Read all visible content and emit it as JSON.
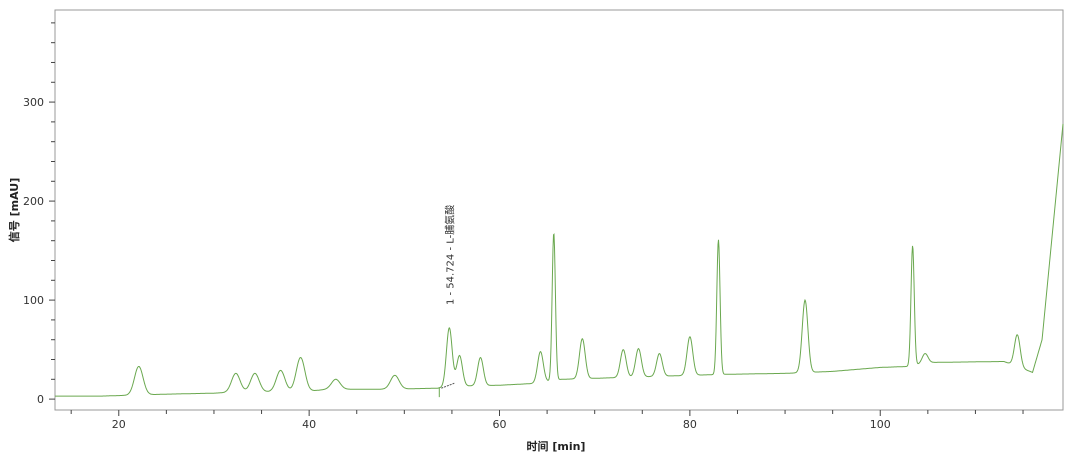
{
  "chart_data": {
    "type": "line",
    "title": "",
    "xlabel": "时间 [min]",
    "ylabel": "信号 [mAU]",
    "xlim": [
      13.3,
      119.2
    ],
    "ylim": [
      -11,
      393
    ],
    "xticks": [
      20,
      40,
      60,
      80,
      100
    ],
    "yticks": [
      0,
      100,
      200,
      300
    ],
    "grid": false,
    "line_color": "#6aa84f",
    "baseline": [
      [
        13.3,
        3
      ],
      [
        18,
        3
      ],
      [
        25,
        5
      ],
      [
        30,
        6
      ],
      [
        32,
        7
      ],
      [
        40,
        8
      ],
      [
        42,
        10
      ],
      [
        48,
        10
      ],
      [
        53.5,
        11
      ],
      [
        55,
        13
      ],
      [
        60,
        14
      ],
      [
        64,
        16
      ],
      [
        66.5,
        20
      ],
      [
        70,
        21
      ],
      [
        80,
        24
      ],
      [
        83.5,
        25
      ],
      [
        90,
        26
      ],
      [
        95,
        28
      ],
      [
        100,
        32
      ],
      [
        103,
        33
      ],
      [
        105,
        37
      ],
      [
        113,
        38
      ],
      [
        116,
        27
      ],
      [
        117,
        60
      ],
      [
        119.2,
        278
      ]
    ],
    "peaks": [
      {
        "t": 22.1,
        "signal": 33
      },
      {
        "t": 32.3,
        "signal": 26
      },
      {
        "t": 34.3,
        "signal": 26
      },
      {
        "t": 37.0,
        "signal": 29
      },
      {
        "t": 39.1,
        "signal": 42
      },
      {
        "t": 42.8,
        "signal": 20
      },
      {
        "t": 49.0,
        "signal": 24
      },
      {
        "t": 54.724,
        "signal": 72
      },
      {
        "t": 55.8,
        "signal": 44
      },
      {
        "t": 58.0,
        "signal": 42
      },
      {
        "t": 64.3,
        "signal": 48
      },
      {
        "t": 65.7,
        "signal": 168
      },
      {
        "t": 68.7,
        "signal": 61
      },
      {
        "t": 73.0,
        "signal": 50
      },
      {
        "t": 74.6,
        "signal": 51
      },
      {
        "t": 76.8,
        "signal": 46
      },
      {
        "t": 80.0,
        "signal": 63
      },
      {
        "t": 83.0,
        "signal": 161
      },
      {
        "t": 92.1,
        "signal": 100
      },
      {
        "t": 103.4,
        "signal": 155
      },
      {
        "t": 104.7,
        "signal": 46
      },
      {
        "t": 114.4,
        "signal": 65
      }
    ],
    "annotations": [
      {
        "t": 54.724,
        "text": "1 - 54.724 - L-脯氨酸"
      }
    ]
  }
}
